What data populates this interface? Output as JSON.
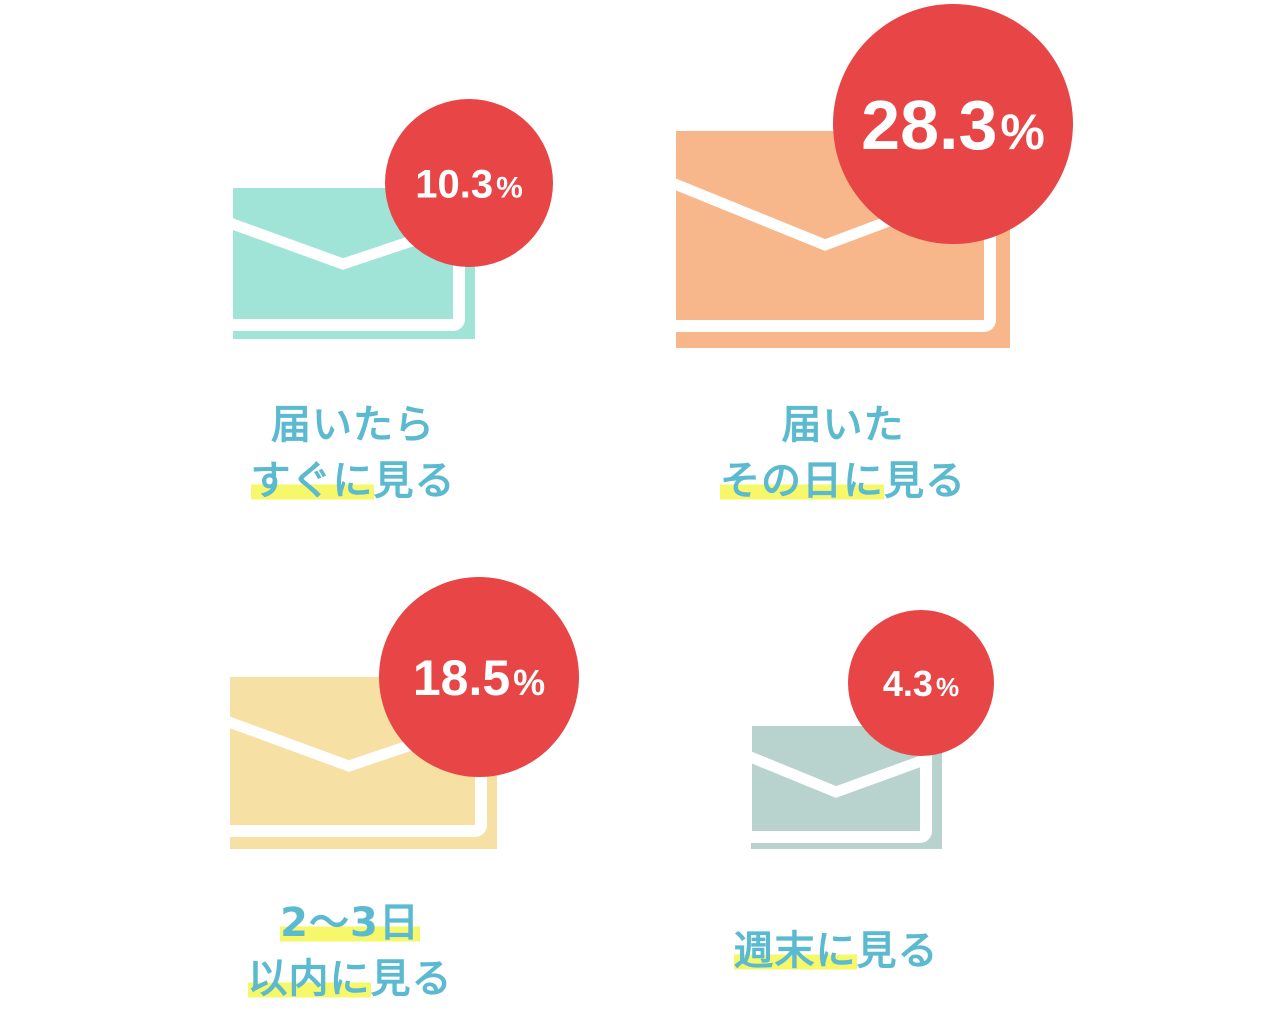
{
  "chart_data": {
    "type": "infographic",
    "items": [
      {
        "value": 10.3,
        "value_label": "10.3",
        "unit": "%",
        "label_lines": [
          "届いたら",
          "すぐに見る"
        ],
        "highlight": [
          "",
          "すぐに"
        ],
        "color": "#9fe4d6"
      },
      {
        "value": 28.3,
        "value_label": "28.3",
        "unit": "%",
        "label_lines": [
          "届いた",
          "その日に見る"
        ],
        "highlight": [
          "",
          "その日に"
        ],
        "color": "#f7b78a"
      },
      {
        "value": 18.5,
        "value_label": "18.5",
        "unit": "%",
        "label_lines": [
          "2～3日",
          "以内に見る"
        ],
        "highlight": [
          "2～3日",
          "以内に"
        ],
        "color": "#f7e0a3"
      },
      {
        "value": 4.3,
        "value_label": "4.3",
        "unit": "%",
        "label_lines": [
          "週末に見る"
        ],
        "highlight": [
          "週末に"
        ],
        "color": "#b8d2ce"
      }
    ],
    "badge_color": "#e84546"
  }
}
